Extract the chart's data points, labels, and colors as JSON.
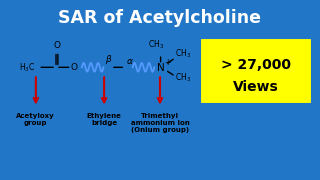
{
  "title": "SAR of Acetylcholine",
  "title_bg": "#2176C7",
  "title_color": "white",
  "views_line1": "> 27,000",
  "views_line2": "Views",
  "views_bg": "#FFFF00",
  "views_color": "black",
  "body_bg": "white",
  "border_color": "#2176C7",
  "label1": "Acetyloxy\ngroup",
  "label2": "Ethylene\nbridge",
  "label3": "Trimethyl\nammonium ion\n(Onium group)",
  "arrow_color": "#CC0000",
  "wavy_color": "#5599FF",
  "struct_color": "black"
}
